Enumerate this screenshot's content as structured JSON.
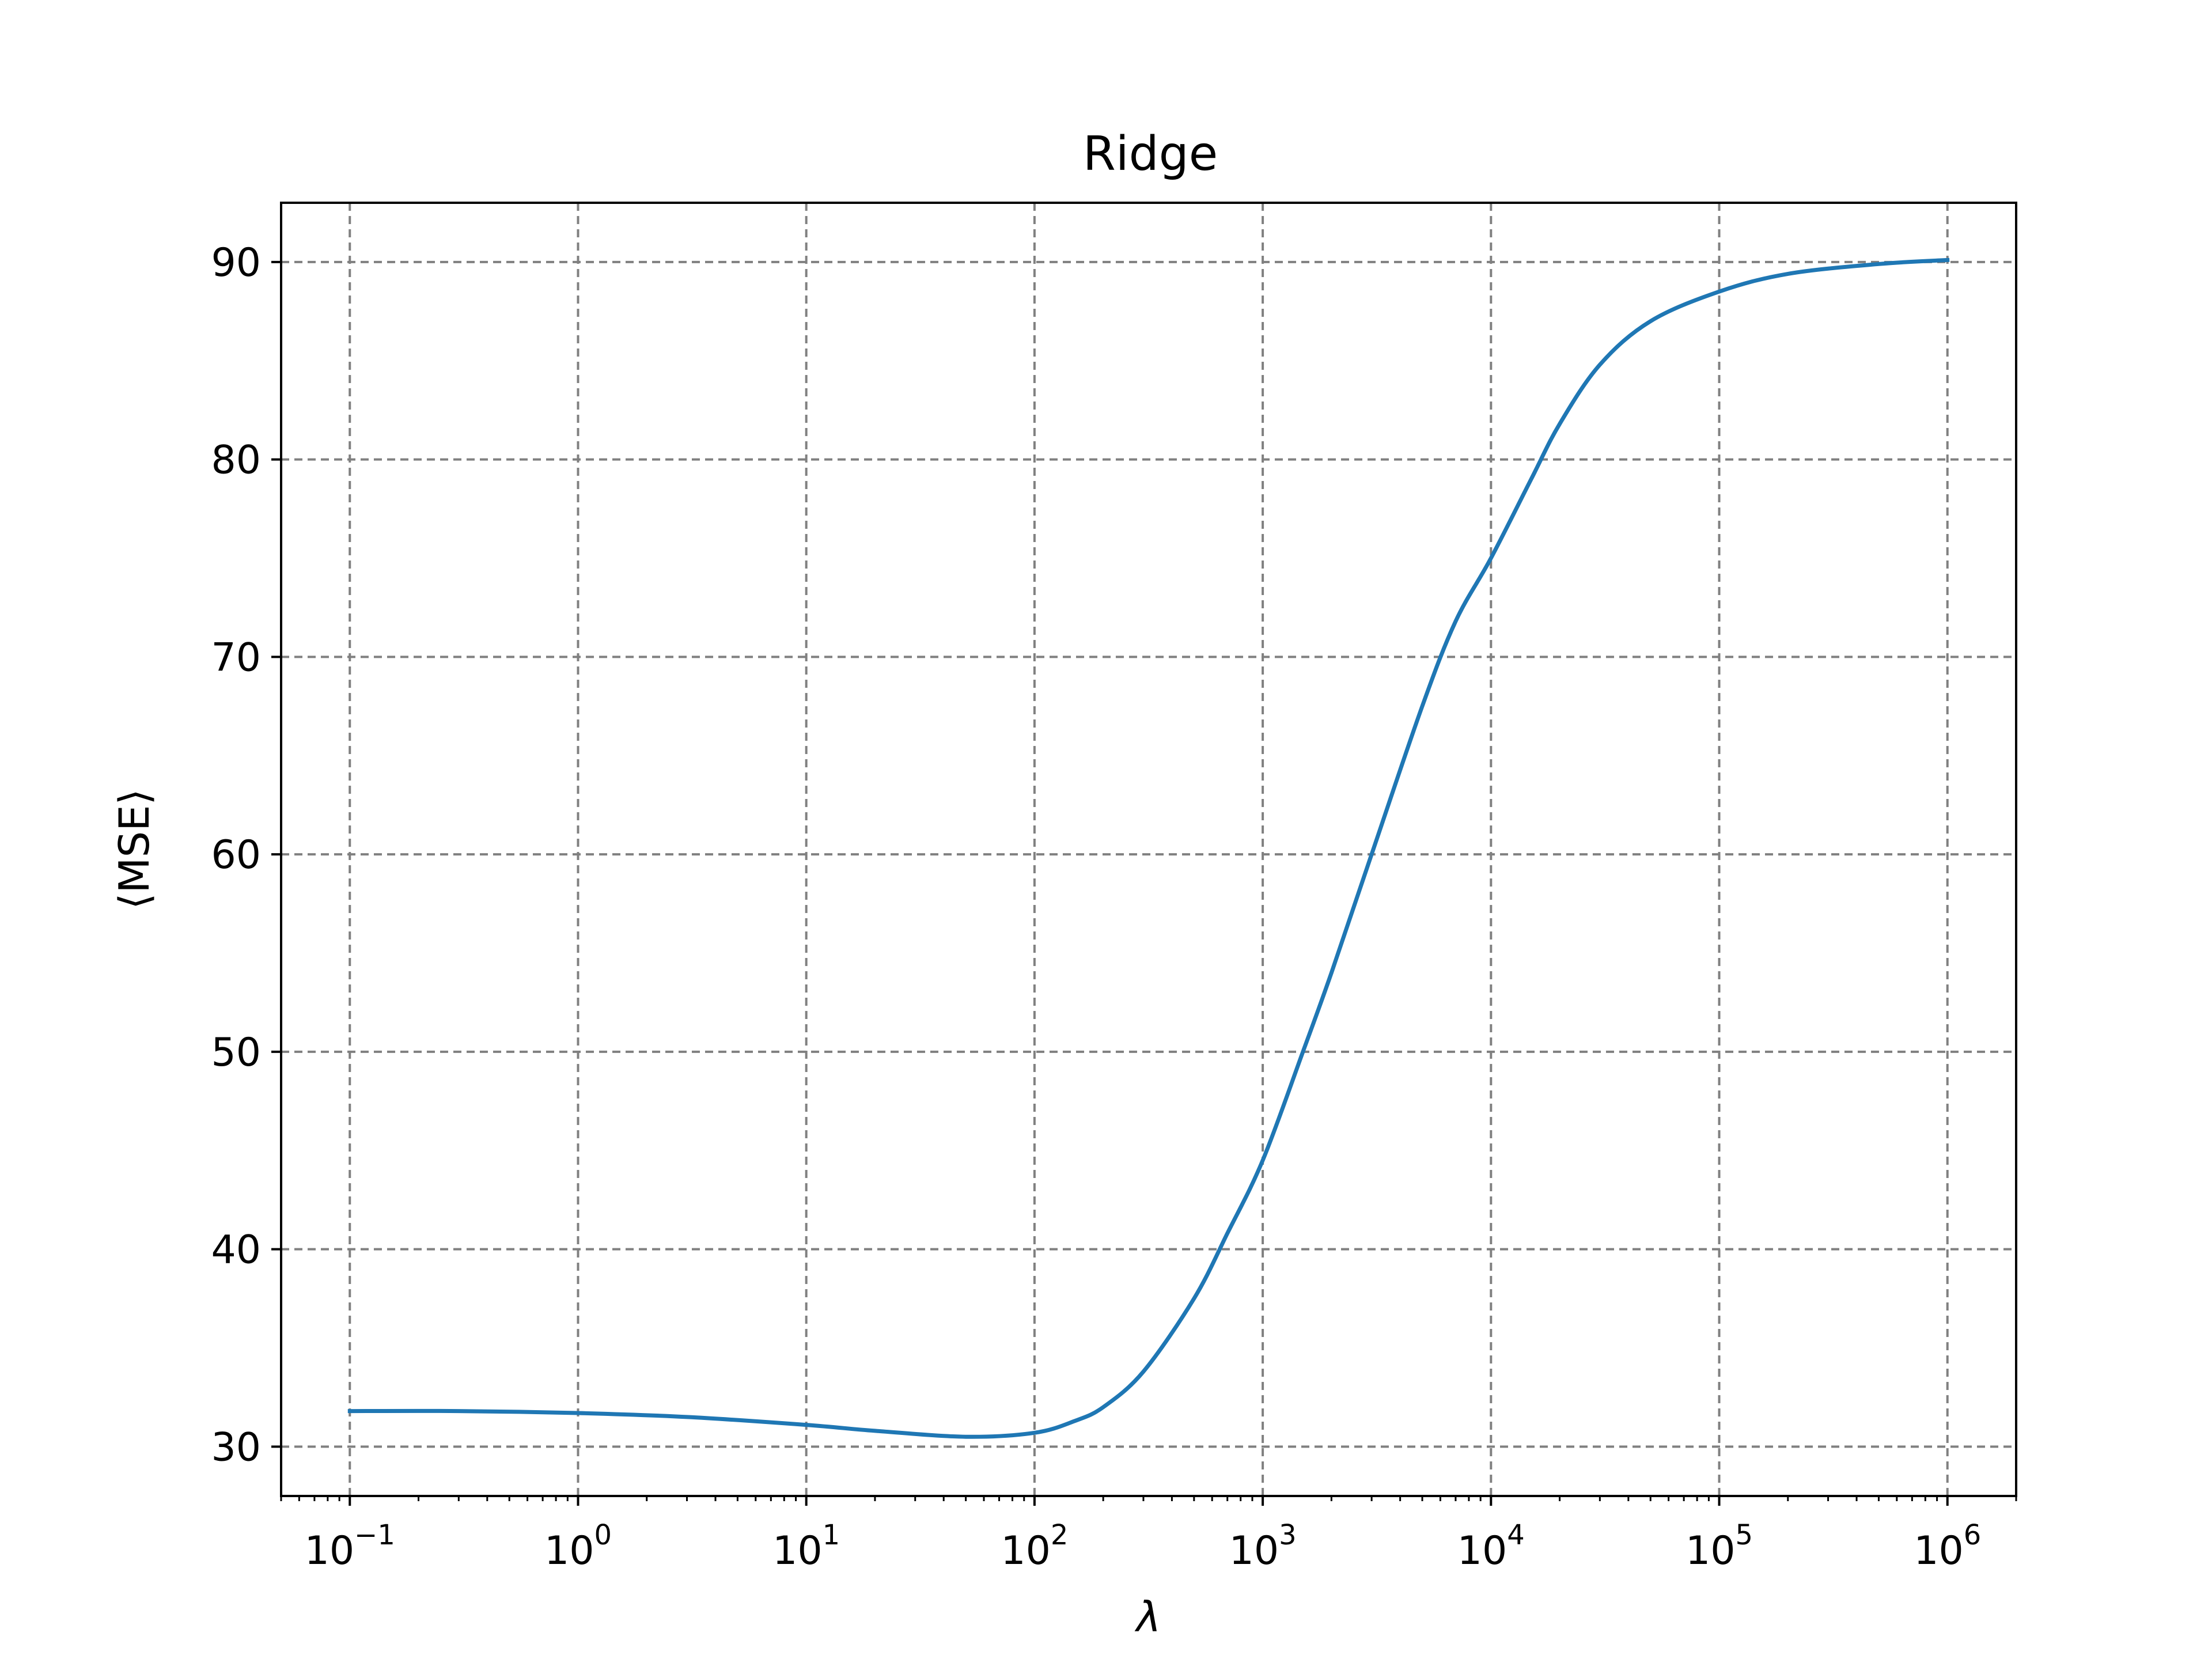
{
  "chart_data": {
    "type": "line",
    "title": "Ridge",
    "xlabel": "λ",
    "ylabel": "⟨MSE⟩",
    "xscale": "log",
    "xlim": [
      0.05,
      2000000
    ],
    "ylim": [
      27.5,
      93
    ],
    "grid": true,
    "x_ticks": [
      {
        "value": 0.1,
        "base": "10",
        "exp": "−1"
      },
      {
        "value": 1,
        "base": "10",
        "exp": "0"
      },
      {
        "value": 10,
        "base": "10",
        "exp": "1"
      },
      {
        "value": 100,
        "base": "10",
        "exp": "2"
      },
      {
        "value": 1000,
        "base": "10",
        "exp": "3"
      },
      {
        "value": 10000,
        "base": "10",
        "exp": "4"
      },
      {
        "value": 100000,
        "base": "10",
        "exp": "5"
      },
      {
        "value": 1000000,
        "base": "10",
        "exp": "6"
      }
    ],
    "y_ticks": [
      30,
      40,
      50,
      60,
      70,
      80,
      90
    ],
    "series": [
      {
        "color": "#1f77b4",
        "x": [
          0.1,
          0.3,
          1,
          3,
          10,
          20,
          50,
          100,
          150,
          200,
          300,
          500,
          700,
          1000,
          1500,
          2000,
          3000,
          5000,
          7000,
          10000,
          15000,
          20000,
          30000,
          50000,
          100000,
          200000,
          500000,
          1000000
        ],
        "y": [
          31.8,
          31.8,
          31.7,
          31.5,
          31.1,
          30.8,
          30.5,
          30.7,
          31.3,
          32.0,
          33.8,
          37.5,
          40.8,
          44.5,
          50.0,
          54.0,
          60.0,
          67.5,
          71.8,
          75.0,
          79.0,
          81.8,
          84.8,
          87.0,
          88.5,
          89.4,
          89.9,
          90.1
        ]
      }
    ]
  }
}
